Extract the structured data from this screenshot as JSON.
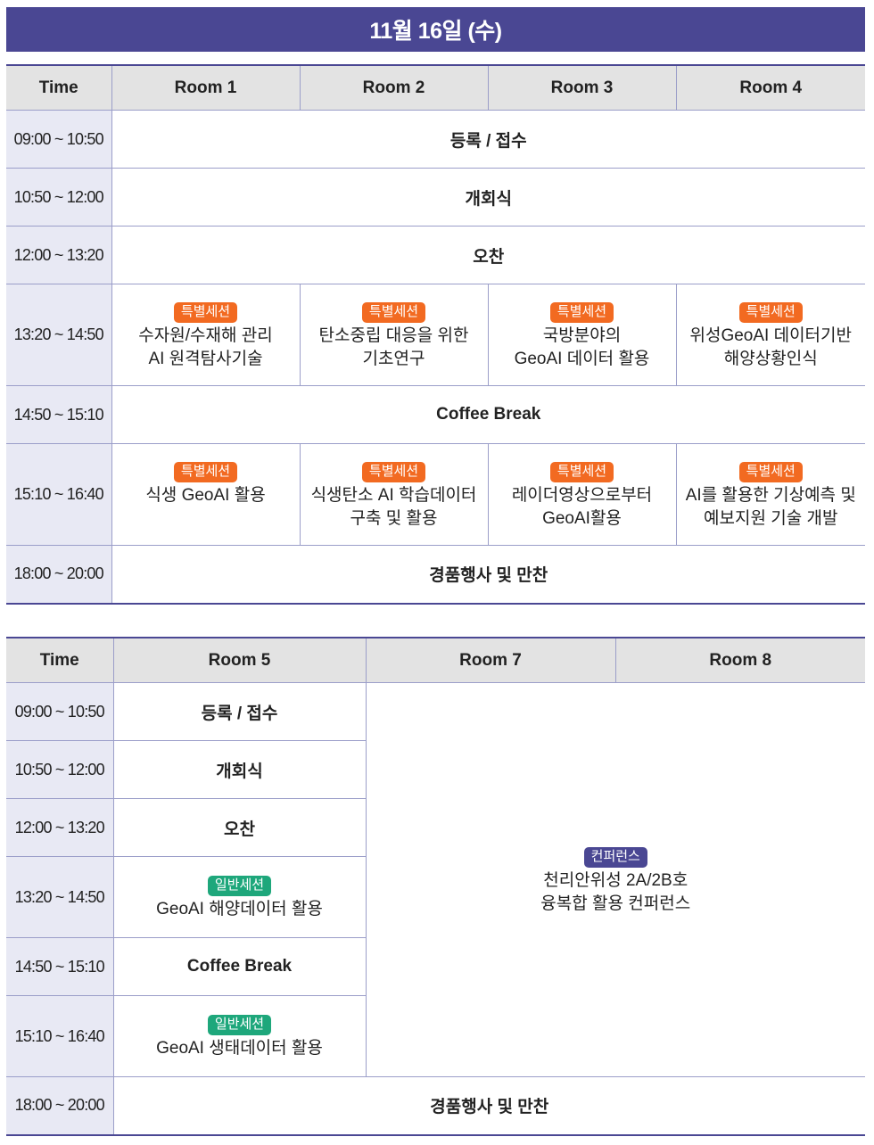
{
  "date_title": "11월 16일 (수)",
  "table1": {
    "headers": [
      "Time",
      "Room 1",
      "Room 2",
      "Room 3",
      "Room 4"
    ],
    "rows": [
      {
        "time": "09:00 ~ 10:50",
        "text": "등록 / 접수"
      },
      {
        "time": "10:50 ~ 12:00",
        "text": "개회식"
      },
      {
        "time": "12:00 ~ 13:20",
        "text": "오찬"
      },
      {
        "time": "13:20 ~ 14:50",
        "sessions": [
          {
            "badge": "특별세션",
            "line1": "수자원/수재해 관리",
            "line2": "AI 원격탐사기술"
          },
          {
            "badge": "특별세션",
            "line1": "탄소중립 대응을 위한",
            "line2": "기초연구"
          },
          {
            "badge": "특별세션",
            "line1": "국방분야의",
            "line2": "GeoAI 데이터 활용"
          },
          {
            "badge": "특별세션",
            "line1": "위성GeoAI 데이터기반",
            "line2": "해양상황인식"
          }
        ]
      },
      {
        "time": "14:50 ~ 15:10",
        "text": "Coffee Break"
      },
      {
        "time": "15:10 ~ 16:40",
        "sessions": [
          {
            "badge": "특별세션",
            "line1": "식생 GeoAI 활용",
            "line2": ""
          },
          {
            "badge": "특별세션",
            "line1": "식생탄소 AI 학습데이터",
            "line2": "구축 및 활용"
          },
          {
            "badge": "특별세션",
            "line1": "레이더영상으로부터",
            "line2": "GeoAI활용"
          },
          {
            "badge": "특별세션",
            "line1": "AI를 활용한 기상예측 및",
            "line2": "예보지원 기술 개발"
          }
        ]
      },
      {
        "time": "18:00 ~ 20:00",
        "text": "경품행사 및 만찬"
      }
    ]
  },
  "table2": {
    "headers": [
      "Time",
      "Room 5",
      "Room 7",
      "Room 8"
    ],
    "rows": [
      {
        "time": "09:00 ~ 10:50",
        "text": "등록 / 접수"
      },
      {
        "time": "10:50 ~ 12:00",
        "text": "개회식"
      },
      {
        "time": "12:00 ~ 13:20",
        "text": "오찬"
      },
      {
        "time": "13:20 ~ 14:50",
        "badge": "일반세션",
        "line1": "GeoAI 해양데이터 활용"
      },
      {
        "time": "14:50 ~ 15:10",
        "text": "Coffee Break"
      },
      {
        "time": "15:10 ~ 16:40",
        "badge": "일반세션",
        "line1": "GeoAI 생태데이터 활용"
      },
      {
        "time": "18:00 ~ 20:00",
        "text": "경품행사 및 만찬"
      }
    ],
    "conference": {
      "badge": "컨퍼런스",
      "line1": "천리안위성 2A/2B호",
      "line2": "융복합 활용 컨퍼런스"
    }
  },
  "colors": {
    "banner": "#4a4793",
    "special_badge": "#f26a21",
    "general_badge": "#1ea77b",
    "conference_badge": "#4a4793",
    "time_cell": "#e8e9f4",
    "header_cell": "#e3e3e3"
  }
}
